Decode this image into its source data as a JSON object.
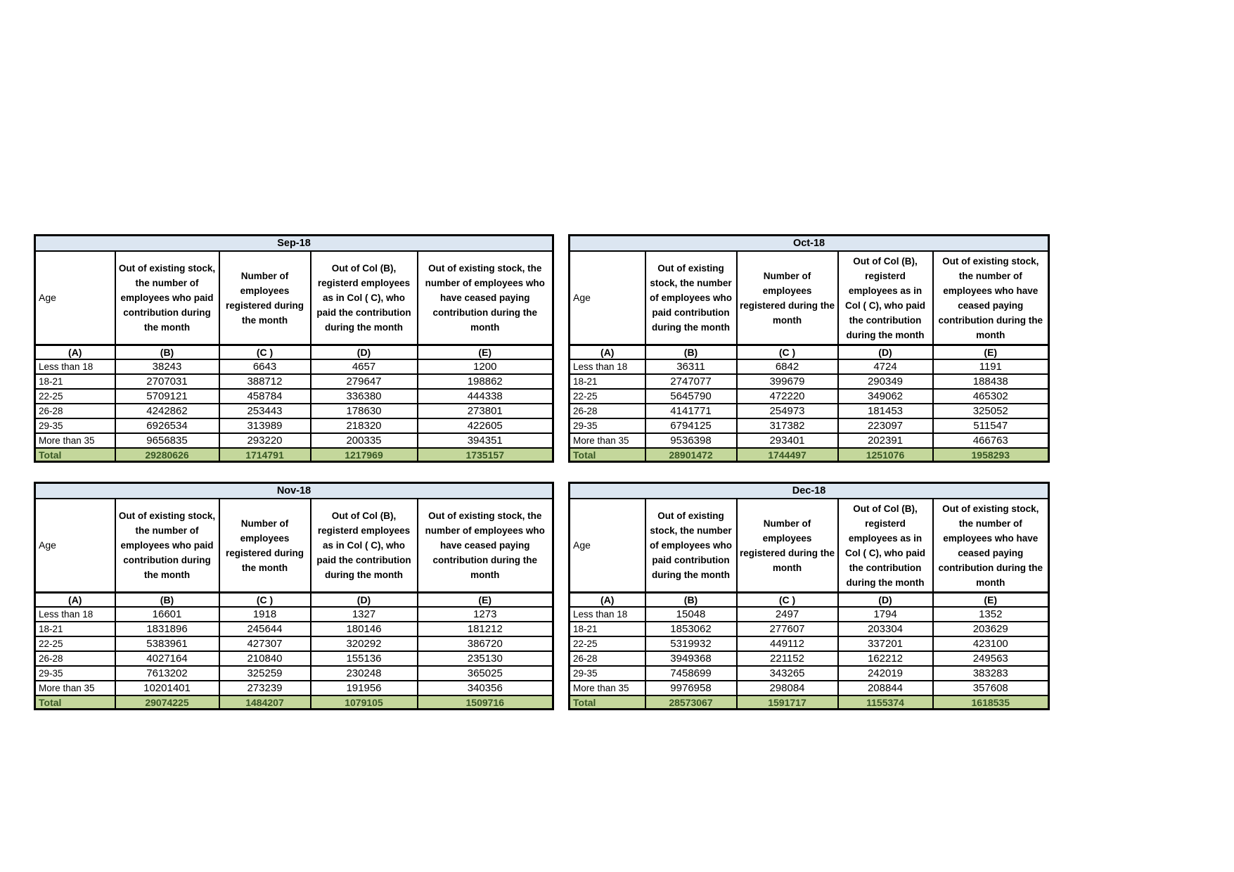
{
  "colors": {
    "title_bg": "#dce6f1",
    "total_bg": "#c4d79b",
    "total_text": "#375623",
    "border": "#000000",
    "page_bg": "#ffffff"
  },
  "header_labels": {
    "age": "Age",
    "col_b": "Out of existing stock, the number of employees who paid contribution during the month",
    "col_c": "Number of employees registered during the month",
    "col_d": "Out of Col (B), registerd employees as in Col ( C), who paid the contribution during the month",
    "col_e": "Out of existing stock, the number of employees  who have ceased paying contribution during the month"
  },
  "column_letters": [
    "(A)",
    "(B)",
    "(C )",
    "(D)",
    "(E)"
  ],
  "tables": [
    {
      "title": "Sep-18",
      "rows": [
        [
          "Less than 18",
          "38243",
          "6643",
          "4657",
          "1200"
        ],
        [
          "18-21",
          "2707031",
          "388712",
          "279647",
          "198862"
        ],
        [
          "22-25",
          "5709121",
          "458784",
          "336380",
          "444338"
        ],
        [
          "26-28",
          "4242862",
          "253443",
          "178630",
          "273801"
        ],
        [
          "29-35",
          "6926534",
          "313989",
          "218320",
          "422605"
        ],
        [
          "More than 35",
          "9656835",
          "293220",
          "200335",
          "394351"
        ]
      ],
      "total": [
        "Total",
        "29280626",
        "1714791",
        "1217969",
        "1735157"
      ]
    },
    {
      "title": "Oct-18",
      "rows": [
        [
          "Less than 18",
          "36311",
          "6842",
          "4724",
          "1191"
        ],
        [
          "18-21",
          "2747077",
          "399679",
          "290349",
          "188438"
        ],
        [
          "22-25",
          "5645790",
          "472220",
          "349062",
          "465302"
        ],
        [
          "26-28",
          "4141771",
          "254973",
          "181453",
          "325052"
        ],
        [
          "29-35",
          "6794125",
          "317382",
          "223097",
          "511547"
        ],
        [
          "More than 35",
          "9536398",
          "293401",
          "202391",
          "466763"
        ]
      ],
      "total": [
        "Total",
        "28901472",
        "1744497",
        "1251076",
        "1958293"
      ]
    },
    {
      "title": "Nov-18",
      "rows": [
        [
          "Less than 18",
          "16601",
          "1918",
          "1327",
          "1273"
        ],
        [
          "18-21",
          "1831896",
          "245644",
          "180146",
          "181212"
        ],
        [
          "22-25",
          "5383961",
          "427307",
          "320292",
          "386720"
        ],
        [
          "26-28",
          "4027164",
          "210840",
          "155136",
          "235130"
        ],
        [
          "29-35",
          "7613202",
          "325259",
          "230248",
          "365025"
        ],
        [
          "More than 35",
          "10201401",
          "273239",
          "191956",
          "340356"
        ]
      ],
      "total": [
        "Total",
        "29074225",
        "1484207",
        "1079105",
        "1509716"
      ]
    },
    {
      "title": "Dec-18",
      "rows": [
        [
          "Less than 18",
          "15048",
          "2497",
          "1794",
          "1352"
        ],
        [
          "18-21",
          "1853062",
          "277607",
          "203304",
          "203629"
        ],
        [
          "22-25",
          "5319932",
          "449112",
          "337201",
          "423100"
        ],
        [
          "26-28",
          "3949368",
          "221152",
          "162212",
          "249563"
        ],
        [
          "29-35",
          "7458699",
          "343265",
          "242019",
          "383283"
        ],
        [
          "More than 35",
          "9976958",
          "298084",
          "208844",
          "357608"
        ]
      ],
      "total": [
        "Total",
        "28573067",
        "1591717",
        "1155374",
        "1618535"
      ]
    }
  ]
}
